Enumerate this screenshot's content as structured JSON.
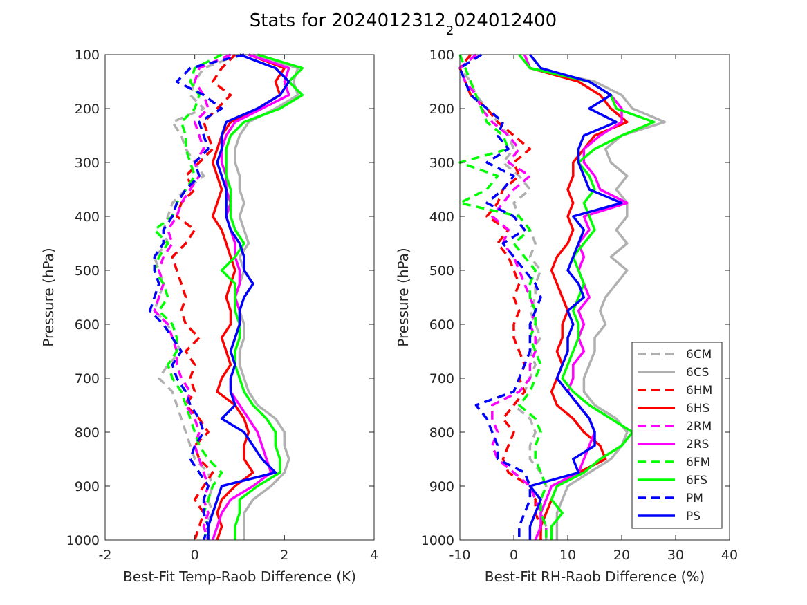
{
  "figure": {
    "title_main": "Stats for 2024012312",
    "title_sub": "2",
    "title_tail": "024012400"
  },
  "colors": {
    "6C": "#b0b0b0",
    "6H": "#ff0000",
    "2R": "#ff00ff",
    "6F": "#00ff00",
    "P": "#0000ff"
  },
  "legend": {
    "placement": "lower-right of right panel",
    "entries": [
      {
        "label": "6CM",
        "color": "#b0b0b0",
        "dashed": true
      },
      {
        "label": "6CS",
        "color": "#b0b0b0",
        "dashed": false
      },
      {
        "label": "6HM",
        "color": "#ff0000",
        "dashed": true
      },
      {
        "label": "6HS",
        "color": "#ff0000",
        "dashed": false
      },
      {
        "label": "2RM",
        "color": "#ff00ff",
        "dashed": true
      },
      {
        "label": "2RS",
        "color": "#ff00ff",
        "dashed": false
      },
      {
        "label": "6FM",
        "color": "#00ff00",
        "dashed": true
      },
      {
        "label": "6FS",
        "color": "#00ff00",
        "dashed": false
      },
      {
        "label": "PM",
        "color": "#0000ff",
        "dashed": true
      },
      {
        "label": "PS",
        "color": "#0000ff",
        "dashed": false
      }
    ]
  },
  "chart_data": [
    {
      "type": "line",
      "xlabel": "Best-Fit Temp-Raob Difference (K)",
      "ylabel": "Pressure (hPa)",
      "xlim": [
        -2,
        4
      ],
      "ylim": [
        100,
        1000
      ],
      "y_reversed": true,
      "xticks": [
        -2,
        0,
        2,
        4
      ],
      "yticks": [
        100,
        200,
        300,
        400,
        500,
        600,
        700,
        800,
        900,
        1000
      ],
      "grid": false,
      "pressure": [
        100,
        125,
        150,
        175,
        200,
        225,
        250,
        275,
        300,
        325,
        350,
        375,
        400,
        425,
        450,
        475,
        500,
        525,
        550,
        575,
        600,
        625,
        650,
        675,
        700,
        725,
        750,
        775,
        800,
        825,
        850,
        875,
        900,
        925,
        950,
        975,
        1000
      ],
      "series": [
        {
          "name": "6CM",
          "values": [
            1.0,
            0.2,
            0.0,
            -0.1,
            0.2,
            -0.5,
            -0.3,
            -0.2,
            0.0,
            0.2,
            -0.2,
            -0.5,
            -0.6,
            -0.7,
            -0.6,
            -0.9,
            -0.8,
            -0.7,
            -0.8,
            -0.9,
            -0.6,
            -0.5,
            -0.3,
            -0.6,
            -0.8,
            -0.5,
            -0.4,
            -0.3,
            -0.2,
            -0.1,
            0.0,
            0.3,
            0.4,
            0.3,
            0.4,
            0.2,
            0.3
          ]
        },
        {
          "name": "6CS",
          "values": [
            1.3,
            2.3,
            2.2,
            2.3,
            1.8,
            1.2,
            1.0,
            0.9,
            0.9,
            1.0,
            1.0,
            1.1,
            1.0,
            1.1,
            1.2,
            1.0,
            1.1,
            1.0,
            0.9,
            1.0,
            1.1,
            1.1,
            1.0,
            1.0,
            1.1,
            1.2,
            1.4,
            1.8,
            2.0,
            2.0,
            2.1,
            2.0,
            1.7,
            1.3,
            1.1,
            1.1,
            1.1
          ]
        },
        {
          "name": "6HM",
          "values": [
            0.9,
            0.6,
            0.4,
            0.8,
            0.5,
            0.2,
            0.3,
            0.4,
            0.1,
            -0.2,
            0.0,
            -0.3,
            -0.4,
            0.0,
            -0.2,
            -0.5,
            -0.4,
            -0.3,
            -0.2,
            -0.3,
            -0.2,
            0.1,
            -0.2,
            0.0,
            -0.1,
            0.0,
            -0.2,
            0.1,
            0.3,
            0.0,
            0.1,
            0.4,
            0.2,
            0.0,
            0.2,
            0.1,
            0.0
          ]
        },
        {
          "name": "6HS",
          "values": [
            1.2,
            2.0,
            1.8,
            1.9,
            1.4,
            0.8,
            0.6,
            0.5,
            0.4,
            0.5,
            0.6,
            0.5,
            0.4,
            0.6,
            0.7,
            0.8,
            0.9,
            0.8,
            0.7,
            0.8,
            0.8,
            0.6,
            0.7,
            0.8,
            0.6,
            0.5,
            0.9,
            1.1,
            1.2,
            1.1,
            1.1,
            1.3,
            0.9,
            0.6,
            0.5,
            0.6,
            0.5
          ]
        },
        {
          "name": "2RM",
          "values": [
            0.8,
            0.1,
            0.0,
            0.2,
            0.3,
            0.0,
            0.1,
            0.2,
            0.0,
            0.1,
            -0.1,
            -0.3,
            -0.4,
            -0.6,
            -0.5,
            -0.7,
            -0.8,
            -0.7,
            -0.8,
            -0.9,
            -0.6,
            -0.5,
            -0.4,
            -0.4,
            -0.3,
            -0.1,
            -0.2,
            0.0,
            0.1,
            0.0,
            0.1,
            0.2,
            0.3,
            0.2,
            0.3,
            0.2,
            0.3
          ]
        },
        {
          "name": "2RS",
          "values": [
            1.2,
            2.1,
            2.0,
            2.1,
            1.5,
            0.9,
            0.7,
            0.6,
            0.6,
            0.7,
            0.7,
            0.8,
            0.7,
            0.8,
            0.9,
            0.9,
            1.0,
            1.0,
            0.9,
            1.0,
            1.0,
            0.9,
            0.8,
            0.9,
            0.8,
            0.8,
            1.0,
            1.2,
            1.4,
            1.5,
            1.6,
            1.7,
            1.3,
            0.8,
            0.6,
            0.5,
            0.4
          ]
        },
        {
          "name": "6FM",
          "values": [
            0.6,
            0.0,
            -0.1,
            0.1,
            0.0,
            -0.3,
            -0.2,
            -0.2,
            -0.1,
            0.0,
            -0.2,
            -0.4,
            -0.5,
            -0.9,
            -0.6,
            -0.8,
            -0.9,
            -0.7,
            -0.6,
            -0.8,
            -0.5,
            -0.4,
            -0.4,
            -0.6,
            -0.5,
            -0.3,
            -0.2,
            -0.1,
            0.0,
            0.1,
            0.3,
            0.6,
            0.4,
            0.3,
            0.2,
            0.3,
            0.2
          ]
        },
        {
          "name": "6FS",
          "values": [
            1.4,
            2.4,
            2.1,
            2.4,
            1.9,
            1.1,
            0.8,
            0.7,
            0.7,
            0.7,
            0.8,
            0.8,
            0.8,
            0.9,
            1.1,
            0.9,
            0.6,
            0.9,
            0.9,
            0.9,
            1.0,
            1.0,
            0.9,
            0.9,
            1.0,
            1.1,
            1.3,
            1.6,
            1.8,
            1.8,
            1.9,
            1.9,
            1.4,
            1.0,
            1.0,
            0.9,
            0.9
          ]
        },
        {
          "name": "PM",
          "values": [
            1.1,
            -0.1,
            -0.4,
            0.2,
            0.6,
            0.1,
            0.2,
            0.3,
            0.0,
            0.1,
            -0.2,
            -0.4,
            -0.5,
            -0.7,
            -0.7,
            -0.9,
            -0.9,
            -0.8,
            -0.9,
            -1.0,
            -0.7,
            -0.5,
            -0.3,
            -0.5,
            -0.4,
            -0.2,
            -0.1,
            0.1,
            0.2,
            0.0,
            -0.1,
            0.1,
            0.3,
            0.2,
            0.2,
            0.3,
            0.2
          ]
        },
        {
          "name": "PS",
          "values": [
            1.0,
            1.8,
            2.1,
            1.9,
            1.4,
            0.7,
            0.6,
            0.6,
            0.5,
            0.6,
            0.7,
            0.7,
            0.7,
            0.8,
            1.0,
            1.1,
            1.1,
            1.3,
            1.1,
            1.0,
            1.0,
            0.9,
            0.8,
            0.9,
            0.8,
            0.8,
            0.9,
            0.6,
            1.1,
            1.3,
            1.5,
            1.8,
            0.6,
            0.5,
            0.4,
            0.3,
            0.3
          ]
        }
      ]
    },
    {
      "type": "line",
      "xlabel": "Best-Fit RH-Raob Difference (%)",
      "ylabel": "Pressure (hPa)",
      "xlim": [
        -10,
        40
      ],
      "ylim": [
        100,
        1000
      ],
      "y_reversed": true,
      "xticks": [
        -10,
        0,
        10,
        20,
        30,
        40
      ],
      "yticks": [
        100,
        200,
        300,
        400,
        500,
        600,
        700,
        800,
        900,
        1000
      ],
      "grid": false,
      "pressure": [
        100,
        125,
        150,
        175,
        200,
        225,
        250,
        275,
        300,
        325,
        350,
        375,
        400,
        425,
        450,
        475,
        500,
        525,
        550,
        575,
        600,
        625,
        650,
        675,
        700,
        725,
        750,
        775,
        800,
        825,
        850,
        875,
        900,
        925,
        950,
        975,
        1000
      ],
      "series": [
        {
          "name": "6CM",
          "values": [
            -7,
            -10,
            -8,
            -7,
            -5,
            -3,
            -1,
            0,
            -2,
            1,
            3,
            0,
            1,
            3,
            4,
            3,
            5,
            4,
            4,
            3,
            4,
            5,
            3,
            4,
            3,
            2,
            0,
            3,
            4,
            3,
            3,
            5,
            6,
            5,
            5,
            6,
            6
          ]
        },
        {
          "name": "6CS",
          "values": [
            1,
            3,
            15,
            20,
            22,
            28,
            20,
            17,
            18,
            21,
            19,
            21,
            21,
            19,
            21,
            18,
            21,
            19,
            17,
            16,
            17,
            15,
            15,
            14,
            13,
            13,
            15,
            19,
            21,
            20,
            18,
            14,
            10,
            9,
            8,
            8,
            8
          ]
        },
        {
          "name": "6HM",
          "values": [
            -8,
            -10,
            -9,
            -8,
            -5,
            -3,
            0,
            3,
            0,
            1,
            -2,
            -3,
            -5,
            -1,
            -3,
            -1,
            0,
            1,
            0,
            1,
            0,
            0,
            1,
            2,
            1,
            2,
            0,
            -2,
            0,
            -1,
            -2,
            -1,
            3,
            4,
            4,
            5,
            5
          ]
        },
        {
          "name": "6HS",
          "values": [
            2,
            3,
            12,
            16,
            18,
            21,
            15,
            13,
            11,
            11,
            10,
            11,
            10,
            11,
            10,
            8,
            7,
            8,
            9,
            10,
            9,
            9,
            8,
            9,
            8,
            7,
            8,
            11,
            13,
            16,
            17,
            12,
            8,
            7,
            6,
            5,
            5
          ]
        },
        {
          "name": "2RM",
          "values": [
            -7,
            -10,
            -9,
            -7,
            -6,
            -4,
            -1,
            1,
            -1,
            3,
            0,
            -2,
            -4,
            -1,
            -2,
            0,
            1,
            2,
            3,
            4,
            3,
            4,
            4,
            3,
            3,
            1,
            -4,
            -4,
            -3,
            -4,
            -3,
            0,
            3,
            4,
            5,
            6,
            6
          ]
        },
        {
          "name": "2RS",
          "values": [
            2,
            3,
            14,
            18,
            20,
            20,
            16,
            13,
            13,
            15,
            16,
            21,
            13,
            14,
            12,
            13,
            12,
            13,
            14,
            12,
            13,
            12,
            13,
            11,
            11,
            10,
            12,
            14,
            15,
            14,
            13,
            12,
            7,
            6,
            5,
            5,
            4
          ]
        },
        {
          "name": "6FM",
          "values": [
            -10,
            -9,
            -8,
            -7,
            -6,
            -5,
            -2,
            -1,
            -10,
            -3,
            -5,
            -10,
            1,
            3,
            0,
            2,
            4,
            3,
            3,
            4,
            4,
            3,
            4,
            5,
            4,
            3,
            1,
            4,
            5,
            4,
            4,
            5,
            6,
            5,
            5,
            6,
            6
          ]
        },
        {
          "name": "6FS",
          "values": [
            1,
            3,
            14,
            18,
            19,
            26,
            20,
            15,
            12,
            14,
            15,
            13,
            14,
            15,
            13,
            11,
            12,
            13,
            12,
            11,
            12,
            12,
            11,
            10,
            9,
            11,
            14,
            18,
            22,
            20,
            16,
            13,
            8,
            7,
            9,
            7,
            7
          ]
        },
        {
          "name": "PM",
          "values": [
            -6,
            -10,
            -9,
            -8,
            -5,
            -2,
            -3,
            -1,
            -5,
            0,
            -2,
            -5,
            0,
            2,
            -2,
            0,
            2,
            4,
            5,
            4,
            3,
            3,
            3,
            2,
            1,
            0,
            -7,
            -5,
            -4,
            -3,
            -3,
            2,
            3,
            3,
            2,
            1,
            1
          ]
        },
        {
          "name": "PS",
          "values": [
            3,
            5,
            14,
            18,
            14,
            19,
            13,
            12,
            12,
            13,
            14,
            20,
            11,
            13,
            12,
            11,
            10,
            12,
            13,
            10,
            11,
            10,
            10,
            9,
            8,
            10,
            12,
            14,
            15,
            15,
            11,
            12,
            3,
            5,
            4,
            3,
            3
          ]
        }
      ]
    }
  ]
}
